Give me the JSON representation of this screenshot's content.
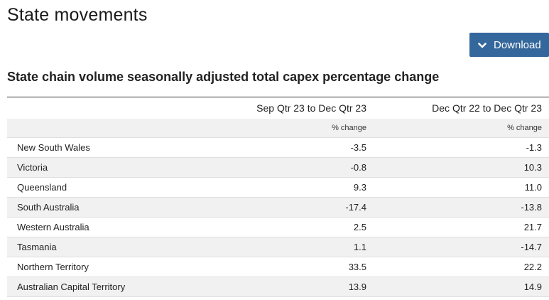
{
  "page": {
    "title": "State movements"
  },
  "download": {
    "label": "Download",
    "icon": "chevron-down-icon"
  },
  "table": {
    "caption": "State chain volume seasonally adjusted total capex percentage change",
    "columns": [
      "",
      "Sep Qtr 23 to Dec Qtr 23",
      "Dec Qtr 22 to Dec Qtr 23"
    ],
    "units": [
      "",
      "% change",
      "% change"
    ],
    "rows": [
      {
        "state": "New South Wales",
        "qoq": "-3.5",
        "yoy": "-1.3"
      },
      {
        "state": "Victoria",
        "qoq": "-0.8",
        "yoy": "10.3"
      },
      {
        "state": "Queensland",
        "qoq": "9.3",
        "yoy": "11.0"
      },
      {
        "state": "South Australia",
        "qoq": "-17.4",
        "yoy": "-13.8"
      },
      {
        "state": "Western Australia",
        "qoq": "2.5",
        "yoy": "21.7"
      },
      {
        "state": "Tasmania",
        "qoq": "1.1",
        "yoy": "-14.7"
      },
      {
        "state": "Northern Territory",
        "qoq": "33.5",
        "yoy": "22.2"
      },
      {
        "state": "Australian Capital Territory",
        "qoq": "13.9",
        "yoy": "14.9"
      }
    ]
  },
  "colors": {
    "button": "#34679c",
    "stripe": "#f1f1f1",
    "text": "#222222"
  }
}
